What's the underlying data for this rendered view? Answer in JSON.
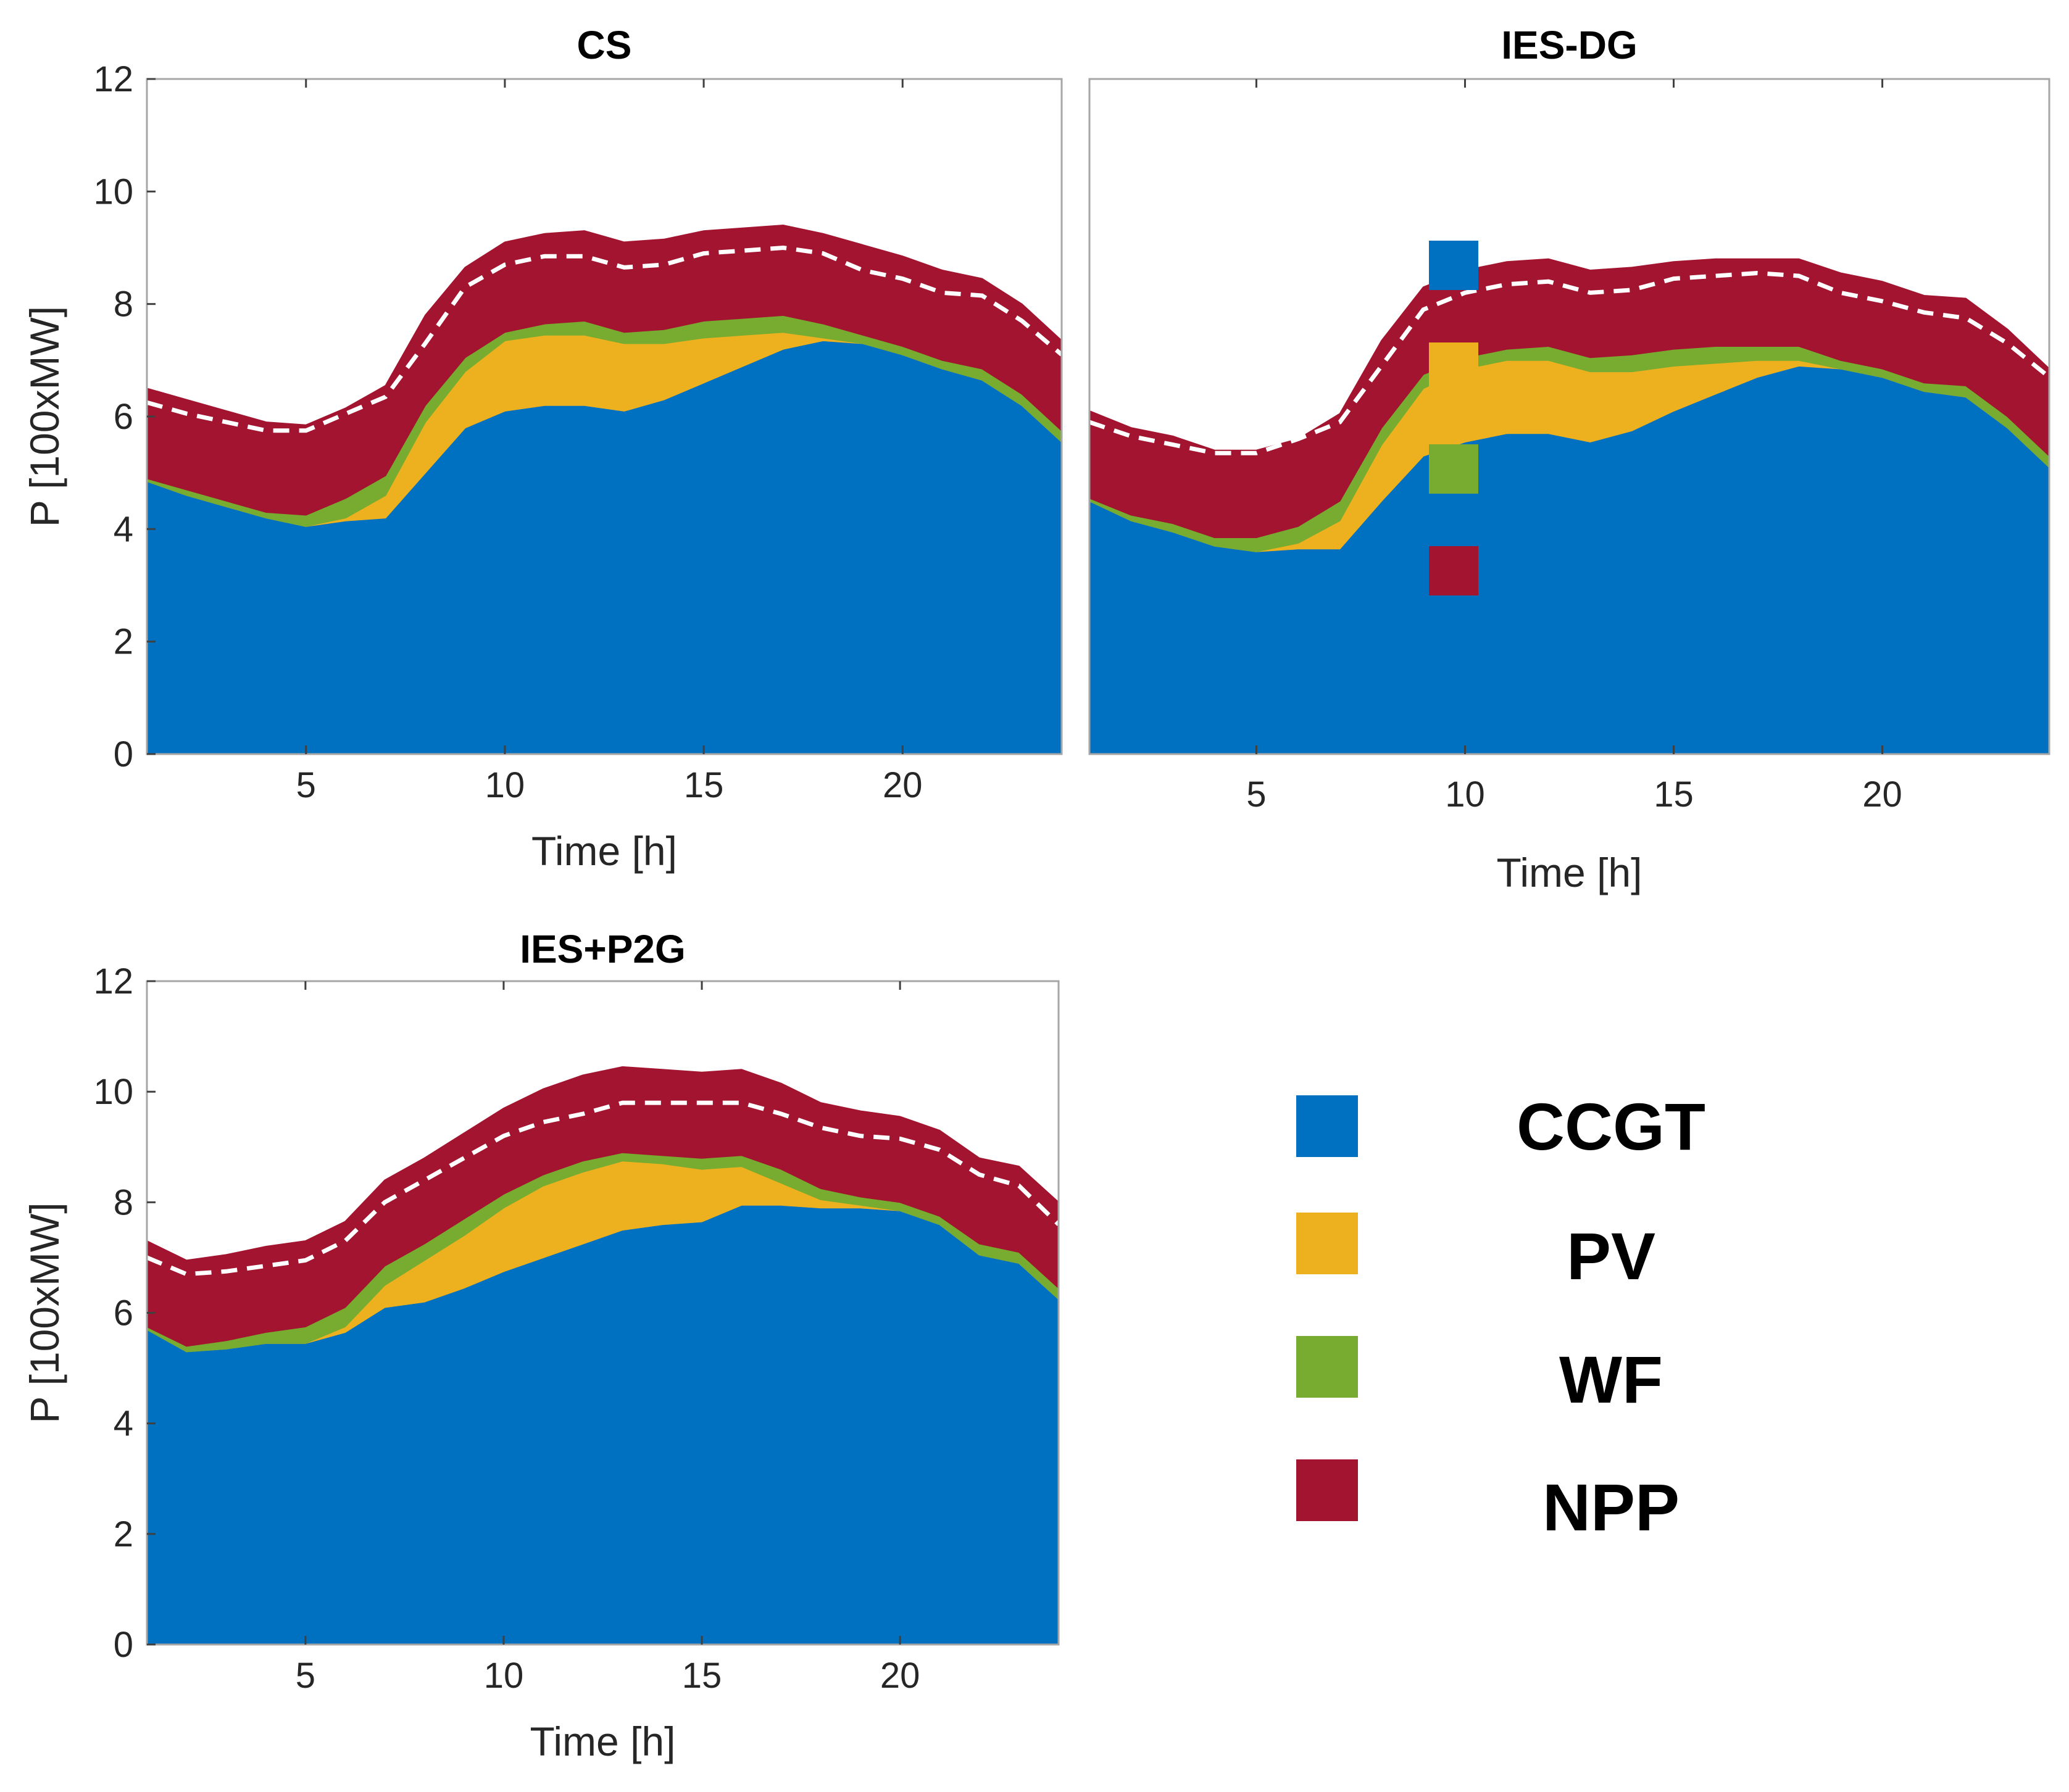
{
  "figure": {
    "legend": [
      {
        "label": "CCGT",
        "color": "#0070C0"
      },
      {
        "label": "PV",
        "color": "#EDB120"
      },
      {
        "label": "WF",
        "color": "#77AC30"
      },
      {
        "label": "NPP",
        "color": "#A2142F"
      }
    ],
    "inset_legend_colors": [
      "#0070C0",
      "#EDB120",
      "#77AC30",
      "#A2142F"
    ],
    "dashed_line_color": "#ffffff"
  },
  "chart_data": [
    {
      "type": "area",
      "title": "CS",
      "xlabel": "Time [h]",
      "ylabel": "P [100xMW]",
      "xlim": [
        1,
        24
      ],
      "ylim": [
        0,
        12
      ],
      "xticks": [
        5,
        10,
        15,
        20
      ],
      "yticks": [
        0,
        2,
        4,
        6,
        8,
        10,
        12
      ],
      "x": [
        1,
        2,
        3,
        4,
        5,
        6,
        7,
        8,
        9,
        10,
        11,
        12,
        13,
        14,
        15,
        16,
        17,
        18,
        19,
        20,
        21,
        22,
        23,
        24
      ],
      "stacking": "cumulative",
      "series": [
        {
          "name": "CCGT",
          "values": [
            4.85,
            4.6,
            4.4,
            4.2,
            4.05,
            4.15,
            4.2,
            5.0,
            5.8,
            6.1,
            6.2,
            6.2,
            6.1,
            6.3,
            6.6,
            6.9,
            7.2,
            7.35,
            7.3,
            7.1,
            6.85,
            6.65,
            6.2,
            5.55
          ]
        },
        {
          "name": "PV",
          "values": [
            0,
            0,
            0,
            0,
            0,
            0.05,
            0.4,
            0.9,
            1.0,
            1.25,
            1.25,
            1.25,
            1.2,
            1.0,
            0.8,
            0.55,
            0.3,
            0.05,
            0,
            0,
            0,
            0,
            0,
            0
          ]
        },
        {
          "name": "WF",
          "values": [
            0.05,
            0.1,
            0.1,
            0.1,
            0.2,
            0.35,
            0.35,
            0.3,
            0.25,
            0.15,
            0.2,
            0.25,
            0.2,
            0.25,
            0.3,
            0.3,
            0.3,
            0.25,
            0.15,
            0.15,
            0.15,
            0.2,
            0.2,
            0.2
          ]
        },
        {
          "name": "NPP",
          "values": [
            1.6,
            1.6,
            1.6,
            1.6,
            1.6,
            1.6,
            1.6,
            1.6,
            1.6,
            1.6,
            1.6,
            1.6,
            1.6,
            1.6,
            1.6,
            1.6,
            1.6,
            1.6,
            1.6,
            1.6,
            1.6,
            1.6,
            1.6,
            1.6
          ]
        }
      ],
      "dashed_line": [
        6.25,
        6.05,
        5.9,
        5.75,
        5.75,
        6.05,
        6.35,
        7.3,
        8.3,
        8.7,
        8.85,
        8.85,
        8.65,
        8.7,
        8.9,
        8.95,
        9.0,
        8.9,
        8.6,
        8.45,
        8.2,
        8.15,
        7.7,
        7.1
      ]
    },
    {
      "type": "area",
      "title": "IES-DG",
      "xlabel": "Time [h]",
      "ylabel": "",
      "xlim": [
        1,
        24
      ],
      "ylim": [
        0,
        12
      ],
      "xticks": [
        5,
        10,
        15,
        20
      ],
      "x": [
        1,
        2,
        3,
        4,
        5,
        6,
        7,
        8,
        9,
        10,
        11,
        12,
        13,
        14,
        15,
        16,
        17,
        18,
        19,
        20,
        21,
        22,
        23,
        24
      ],
      "stacking": "cumulative",
      "series": [
        {
          "name": "CCGT",
          "values": [
            4.5,
            4.15,
            3.95,
            3.7,
            3.6,
            3.65,
            3.65,
            4.5,
            5.3,
            5.55,
            5.7,
            5.7,
            5.55,
            5.75,
            6.1,
            6.4,
            6.7,
            6.9,
            6.85,
            6.7,
            6.45,
            6.35,
            5.8,
            5.1
          ]
        },
        {
          "name": "PV",
          "values": [
            0,
            0,
            0,
            0,
            0,
            0.1,
            0.5,
            1.0,
            1.2,
            1.3,
            1.3,
            1.3,
            1.25,
            1.05,
            0.8,
            0.55,
            0.3,
            0.1,
            0,
            0,
            0,
            0,
            0,
            0
          ]
        },
        {
          "name": "WF",
          "values": [
            0.05,
            0.1,
            0.15,
            0.15,
            0.25,
            0.3,
            0.35,
            0.3,
            0.25,
            0.2,
            0.2,
            0.25,
            0.25,
            0.3,
            0.3,
            0.3,
            0.25,
            0.25,
            0.15,
            0.15,
            0.15,
            0.2,
            0.2,
            0.2
          ]
        },
        {
          "name": "NPP",
          "values": [
            1.55,
            1.55,
            1.55,
            1.55,
            1.55,
            1.55,
            1.55,
            1.55,
            1.55,
            1.55,
            1.55,
            1.55,
            1.55,
            1.55,
            1.55,
            1.55,
            1.55,
            1.55,
            1.55,
            1.55,
            1.55,
            1.55,
            1.55,
            1.55
          ]
        }
      ],
      "dashed_line": [
        5.9,
        5.65,
        5.5,
        5.35,
        5.35,
        5.6,
        5.9,
        6.9,
        7.9,
        8.2,
        8.35,
        8.4,
        8.2,
        8.25,
        8.45,
        8.5,
        8.55,
        8.5,
        8.2,
        8.05,
        7.85,
        7.75,
        7.3,
        6.7
      ]
    },
    {
      "type": "area",
      "title": "IES+P2G",
      "xlabel": "Time [h]",
      "ylabel": "P [100xMW]",
      "xlim": [
        1,
        24
      ],
      "ylim": [
        0,
        12
      ],
      "xticks": [
        5,
        10,
        15,
        20
      ],
      "yticks": [
        0,
        2,
        4,
        6,
        8,
        10,
        12
      ],
      "x": [
        1,
        2,
        3,
        4,
        5,
        6,
        7,
        8,
        9,
        10,
        11,
        12,
        13,
        14,
        15,
        16,
        17,
        18,
        19,
        20,
        21,
        22,
        23,
        24
      ],
      "stacking": "cumulative",
      "series": [
        {
          "name": "CCGT",
          "values": [
            5.7,
            5.3,
            5.35,
            5.45,
            5.45,
            5.65,
            6.1,
            6.2,
            6.45,
            6.75,
            7.0,
            7.25,
            7.5,
            7.6,
            7.65,
            7.95,
            7.95,
            7.9,
            7.9,
            7.85,
            7.6,
            7.05,
            6.9,
            6.25
          ]
        },
        {
          "name": "PV",
          "values": [
            0,
            0,
            0,
            0,
            0,
            0.1,
            0.4,
            0.75,
            0.95,
            1.15,
            1.3,
            1.3,
            1.25,
            1.1,
            0.95,
            0.7,
            0.4,
            0.15,
            0.05,
            0,
            0,
            0,
            0,
            0
          ]
        },
        {
          "name": "WF",
          "values": [
            0.05,
            0.1,
            0.15,
            0.2,
            0.3,
            0.35,
            0.35,
            0.3,
            0.3,
            0.25,
            0.2,
            0.2,
            0.15,
            0.15,
            0.2,
            0.2,
            0.25,
            0.2,
            0.15,
            0.15,
            0.15,
            0.2,
            0.2,
            0.2
          ]
        },
        {
          "name": "NPP",
          "values": [
            1.55,
            1.55,
            1.55,
            1.55,
            1.55,
            1.55,
            1.55,
            1.55,
            1.55,
            1.55,
            1.55,
            1.55,
            1.55,
            1.55,
            1.55,
            1.55,
            1.55,
            1.55,
            1.55,
            1.55,
            1.55,
            1.55,
            1.55,
            1.55
          ]
        }
      ],
      "dashed_line": [
        7.0,
        6.7,
        6.75,
        6.85,
        6.95,
        7.3,
        8.0,
        8.4,
        8.8,
        9.2,
        9.45,
        9.6,
        9.8,
        9.8,
        9.8,
        9.8,
        9.6,
        9.35,
        9.2,
        9.15,
        8.95,
        8.5,
        8.3,
        7.6
      ]
    }
  ]
}
